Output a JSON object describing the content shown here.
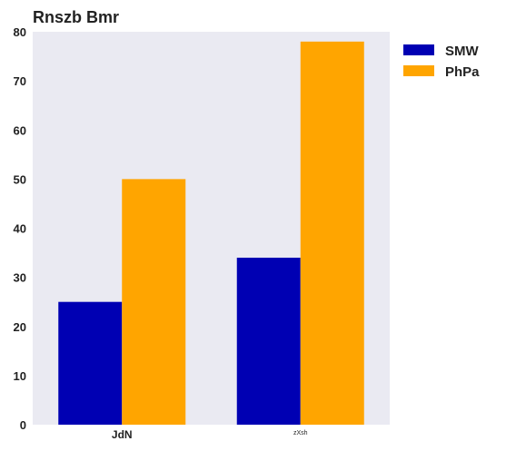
{
  "chart_data": {
    "type": "bar",
    "title": "Rnszb Bmr",
    "xlabel": "",
    "ylabel": "",
    "categories": [
      "JdN",
      "zXsh"
    ],
    "series": [
      {
        "name": "SMW",
        "values": [
          25,
          34
        ],
        "color": "#0000b3"
      },
      {
        "name": "PhPa",
        "values": [
          50,
          78
        ],
        "color": "#ffa500"
      }
    ],
    "ylim": [
      0,
      80
    ],
    "yticks": [
      0,
      10,
      20,
      30,
      40,
      50,
      60,
      70,
      80
    ],
    "grid": false,
    "legend_position": "top-right",
    "plot_background": "#eaeaf2"
  }
}
